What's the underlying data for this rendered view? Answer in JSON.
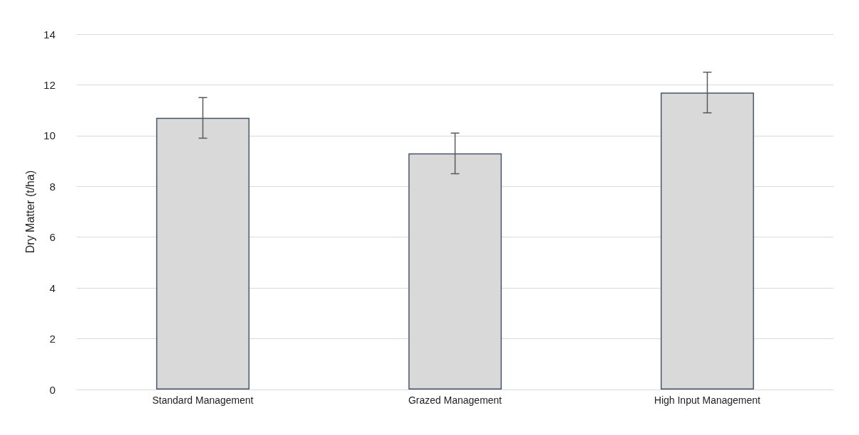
{
  "chart_data": {
    "type": "bar",
    "ylabel": "Dry Matter (t/ha)",
    "categories": [
      "Standard Management",
      "Grazed Management",
      "High Input Management"
    ],
    "values": [
      10.7,
      9.3,
      11.7
    ],
    "errors": [
      0.8,
      0.8,
      0.8
    ],
    "color": "#d9d9d9",
    "ylim": [
      0,
      14
    ],
    "yticks": [
      0,
      2,
      4,
      6,
      8,
      10,
      12,
      14
    ],
    "grid": "y"
  }
}
